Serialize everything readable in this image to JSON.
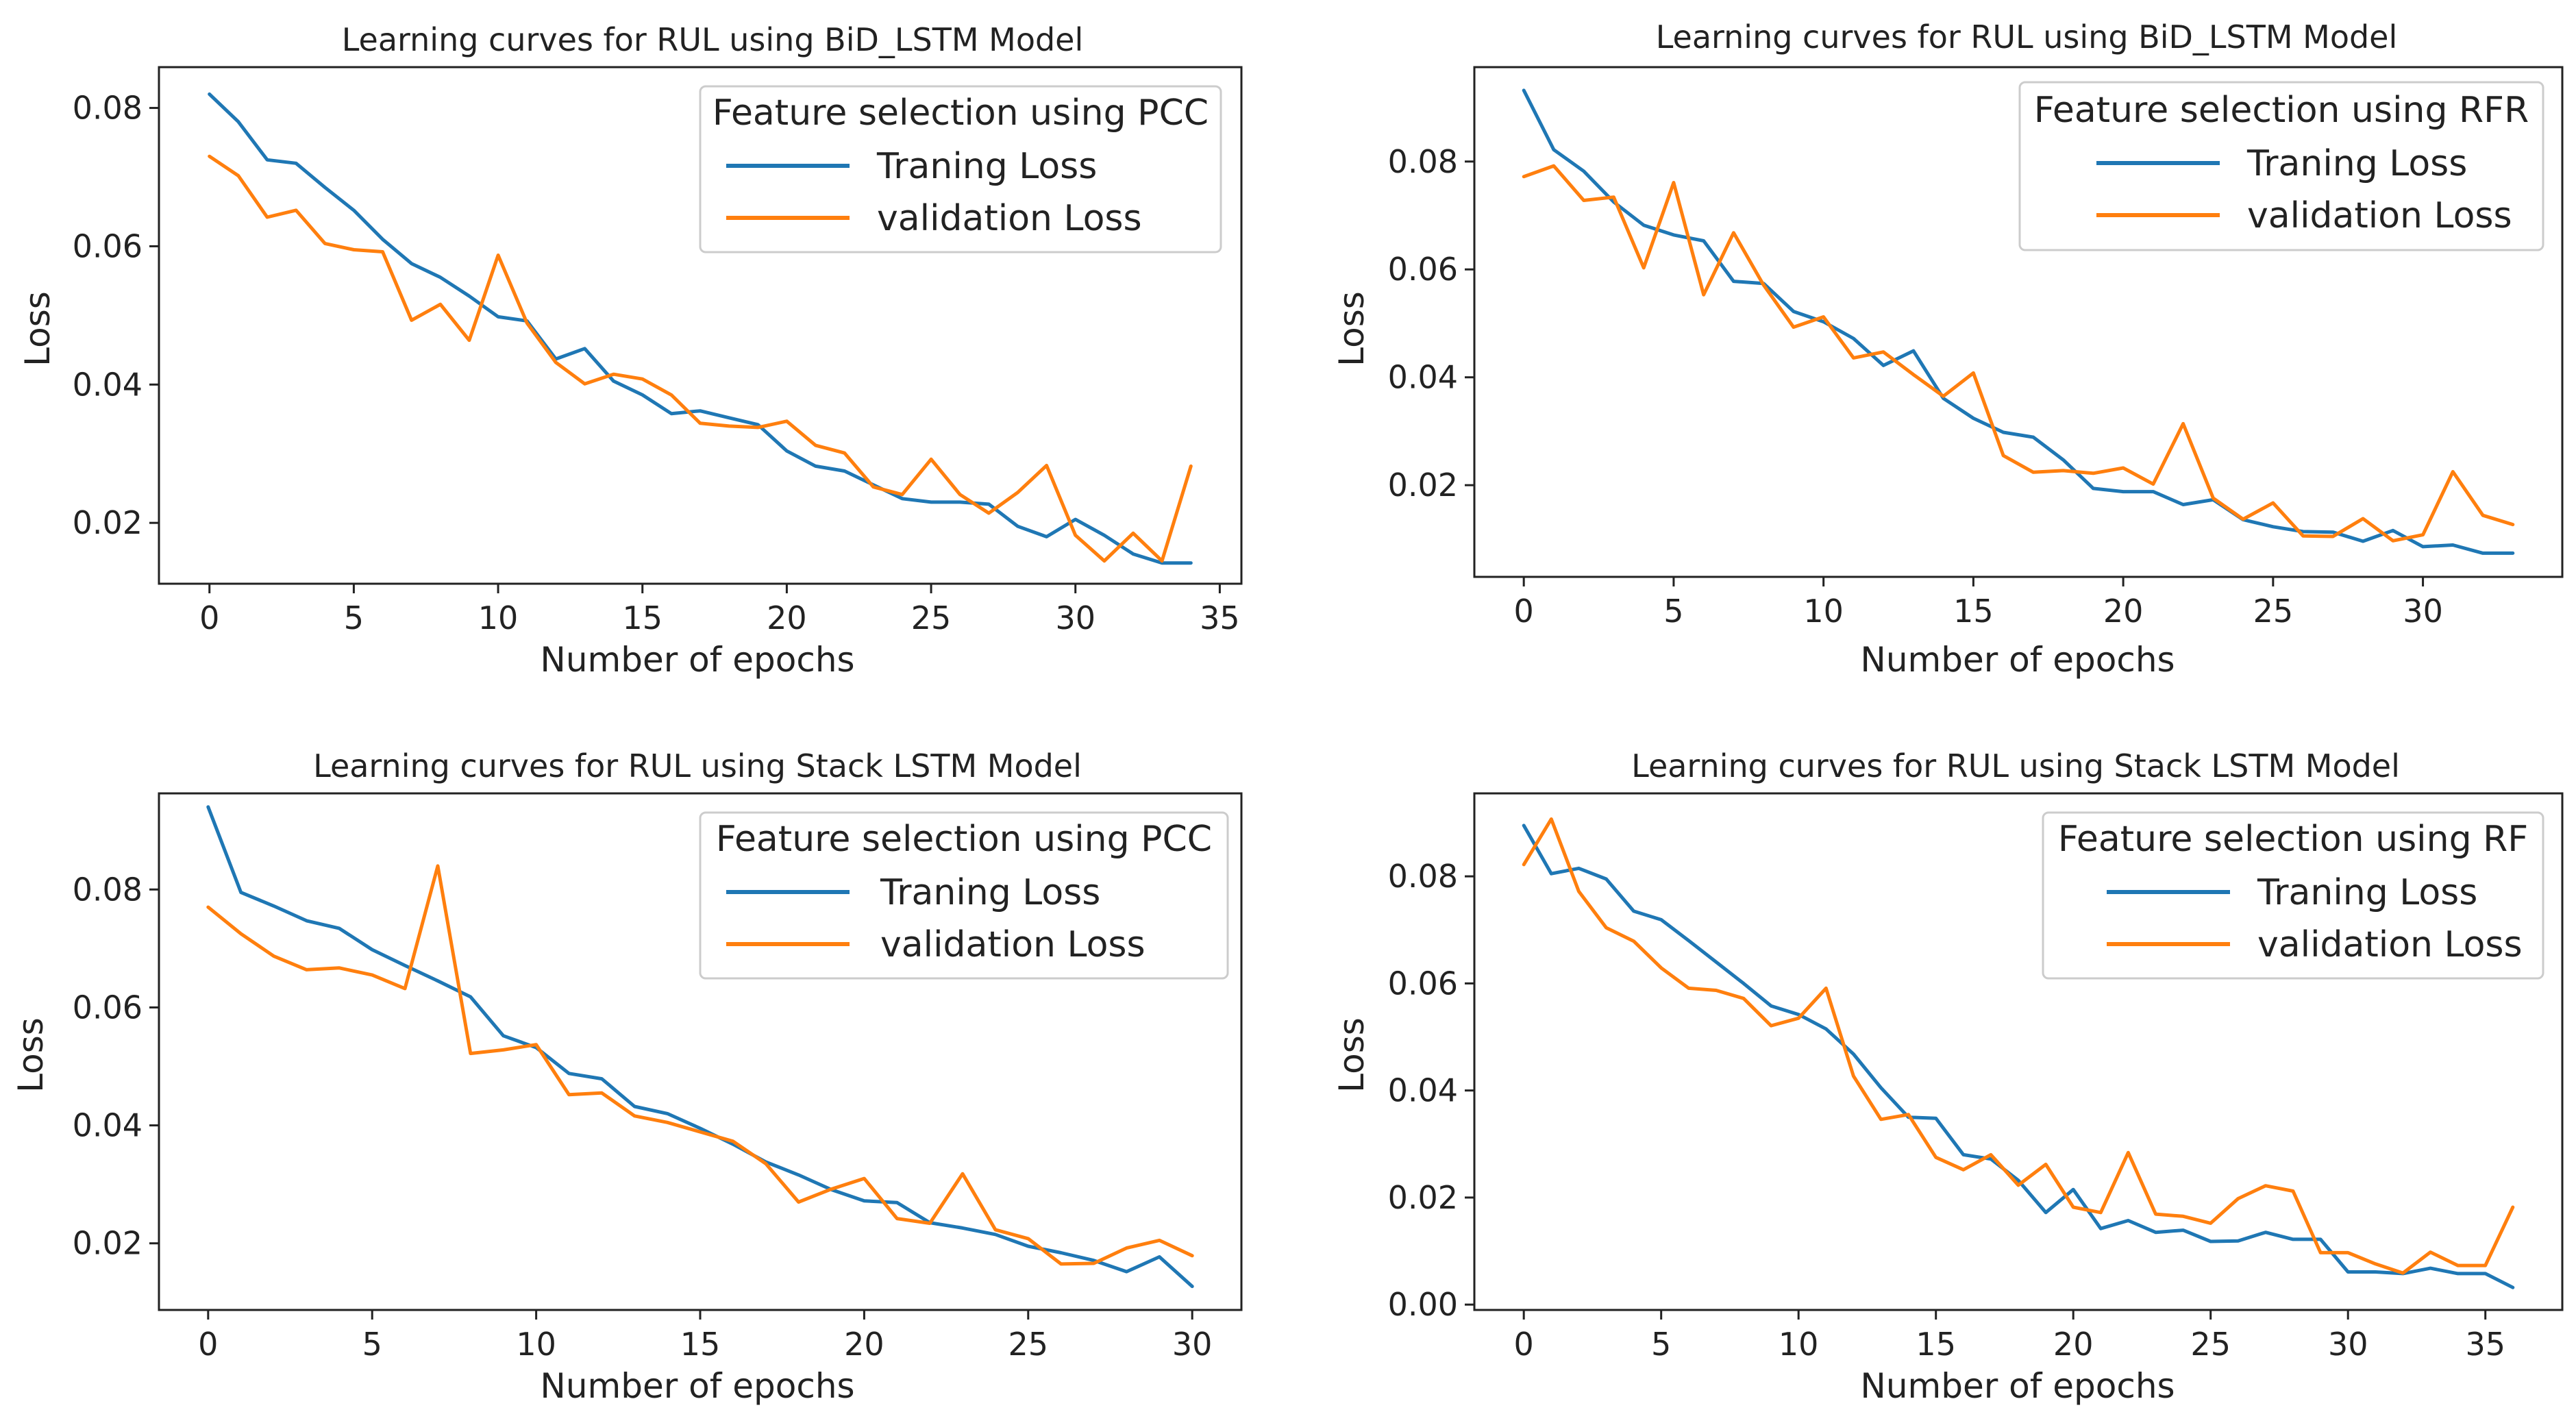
{
  "colors": {
    "train": "#1f77b4",
    "val": "#ff7f0e",
    "axis": "#222222",
    "legend_border": "#cccccc"
  },
  "chart_data": [
    {
      "type": "line",
      "title": "Learning curves for RUL using BiD_LSTM Model",
      "legend_title": "Feature selection using PCC",
      "xlabel": "Number of epochs",
      "ylabel": "Loss",
      "xlim": [
        -1.75,
        35.75
      ],
      "ylim": [
        0.0112,
        0.0859
      ],
      "xticks": [
        0,
        5,
        10,
        15,
        20,
        25,
        30,
        35
      ],
      "yticks": [
        0.02,
        0.04,
        0.06,
        0.08
      ],
      "ytick_labels": [
        "0.02",
        "0.04",
        "0.06",
        "0.08"
      ],
      "series": [
        {
          "name": "Traning Loss",
          "color": "#1f77b4",
          "x": [
            0,
            1,
            2,
            3,
            4,
            5,
            6,
            7,
            8,
            9,
            10,
            11,
            12,
            13,
            14,
            15,
            16,
            17,
            18,
            19,
            20,
            21,
            22,
            23,
            24,
            25,
            26,
            27,
            28,
            29,
            30,
            31,
            32,
            33,
            34
          ],
          "values": [
            0.082,
            0.078,
            0.0725,
            0.072,
            0.0685,
            0.0652,
            0.061,
            0.0575,
            0.0555,
            0.0528,
            0.0498,
            0.0492,
            0.0437,
            0.0452,
            0.0405,
            0.0385,
            0.0358,
            0.0362,
            0.0352,
            0.0342,
            0.0304,
            0.0282,
            0.0275,
            0.0255,
            0.0235,
            0.023,
            0.023,
            0.0227,
            0.0195,
            0.018,
            0.0205,
            0.0182,
            0.0155,
            0.0142,
            0.0142
          ]
        },
        {
          "name": "validation Loss",
          "color": "#ff7f0e",
          "x": [
            0,
            1,
            2,
            3,
            4,
            5,
            6,
            7,
            8,
            9,
            10,
            11,
            12,
            13,
            14,
            15,
            16,
            17,
            18,
            19,
            20,
            21,
            22,
            23,
            24,
            25,
            26,
            27,
            28,
            29,
            30,
            31,
            32,
            33,
            34
          ],
          "values": [
            0.073,
            0.0702,
            0.0642,
            0.0652,
            0.0604,
            0.0595,
            0.0592,
            0.0493,
            0.0516,
            0.0464,
            0.0587,
            0.0489,
            0.0432,
            0.0401,
            0.0415,
            0.0408,
            0.0385,
            0.0344,
            0.034,
            0.0338,
            0.0347,
            0.0312,
            0.0301,
            0.0252,
            0.0241,
            0.0292,
            0.0241,
            0.0214,
            0.0244,
            0.0283,
            0.0182,
            0.0145,
            0.0185,
            0.0145,
            0.0282
          ]
        }
      ]
    },
    {
      "type": "line",
      "title": "Learning curves for RUL using BiD_LSTM Model",
      "legend_title": "Feature selection using RFR",
      "xlabel": "Number of epochs",
      "ylabel": "Loss",
      "xlim": [
        -1.65,
        34.65
      ],
      "ylim": [
        0.003,
        0.0975
      ],
      "xticks": [
        0,
        5,
        10,
        15,
        20,
        25,
        30
      ],
      "yticks": [
        0.02,
        0.04,
        0.06,
        0.08
      ],
      "ytick_labels": [
        "0.02",
        "0.04",
        "0.06",
        "0.08"
      ],
      "series": [
        {
          "name": "Traning Loss",
          "color": "#1f77b4",
          "x": [
            0,
            1,
            2,
            3,
            4,
            5,
            6,
            7,
            8,
            9,
            10,
            11,
            12,
            13,
            14,
            15,
            16,
            17,
            18,
            19,
            20,
            21,
            22,
            23,
            24,
            25,
            26,
            27,
            28,
            29,
            30,
            31,
            32,
            33
          ],
          "values": [
            0.0932,
            0.0822,
            0.0782,
            0.0725,
            0.0682,
            0.0664,
            0.0653,
            0.0578,
            0.0574,
            0.0522,
            0.0503,
            0.0472,
            0.0422,
            0.0449,
            0.0361,
            0.0324,
            0.0298,
            0.0289,
            0.0247,
            0.0194,
            0.0188,
            0.0188,
            0.0164,
            0.0173,
            0.0136,
            0.0123,
            0.0114,
            0.0113,
            0.0096,
            0.0116,
            0.0086,
            0.0089,
            0.0074,
            0.0074
          ]
        },
        {
          "name": "validation Loss",
          "color": "#ff7f0e",
          "x": [
            0,
            1,
            2,
            3,
            4,
            5,
            6,
            7,
            8,
            9,
            10,
            11,
            12,
            13,
            14,
            15,
            16,
            17,
            18,
            19,
            20,
            21,
            22,
            23,
            24,
            25,
            26,
            27,
            28,
            29,
            30,
            31,
            32,
            33
          ],
          "values": [
            0.0772,
            0.0792,
            0.0728,
            0.0734,
            0.0603,
            0.0761,
            0.0553,
            0.0668,
            0.0571,
            0.0493,
            0.0512,
            0.0436,
            0.0447,
            0.0405,
            0.0365,
            0.0408,
            0.0255,
            0.0224,
            0.0227,
            0.0222,
            0.0232,
            0.0202,
            0.0314,
            0.0176,
            0.0137,
            0.0167,
            0.0106,
            0.0105,
            0.0138,
            0.0097,
            0.0108,
            0.0225,
            0.0144,
            0.0127
          ]
        }
      ]
    },
    {
      "type": "line",
      "title": "Learning curves for RUL using Stack LSTM Model",
      "legend_title": "Feature selection using PCC",
      "xlabel": "Number of epochs",
      "ylabel": "Loss",
      "xlim": [
        -1.5,
        31.5
      ],
      "ylim": [
        0.0087,
        0.0963
      ],
      "xticks": [
        0,
        5,
        10,
        15,
        20,
        25,
        30
      ],
      "yticks": [
        0.02,
        0.04,
        0.06,
        0.08
      ],
      "ytick_labels": [
        "0.02",
        "0.04",
        "0.06",
        "0.08"
      ],
      "series": [
        {
          "name": "Traning Loss",
          "color": "#1f77b4",
          "x": [
            0,
            1,
            2,
            3,
            4,
            5,
            6,
            7,
            8,
            9,
            10,
            11,
            12,
            13,
            14,
            15,
            16,
            17,
            18,
            19,
            20,
            21,
            22,
            23,
            24,
            25,
            26,
            27,
            28,
            29,
            30
          ],
          "values": [
            0.094,
            0.0795,
            0.0772,
            0.0747,
            0.0734,
            0.0698,
            0.0671,
            0.0645,
            0.0618,
            0.0552,
            0.0532,
            0.0488,
            0.0479,
            0.0432,
            0.042,
            0.0395,
            0.0368,
            0.0338,
            0.0316,
            0.0291,
            0.0272,
            0.0269,
            0.0235,
            0.0226,
            0.0215,
            0.0195,
            0.0184,
            0.0171,
            0.0152,
            0.0177,
            0.0127
          ]
        },
        {
          "name": "validation Loss",
          "color": "#ff7f0e",
          "x": [
            0,
            1,
            2,
            3,
            4,
            5,
            6,
            7,
            8,
            9,
            10,
            11,
            12,
            13,
            14,
            15,
            16,
            17,
            18,
            19,
            20,
            21,
            22,
            23,
            24,
            25,
            26,
            27,
            28,
            29,
            30
          ],
          "values": [
            0.077,
            0.0725,
            0.0687,
            0.0664,
            0.0667,
            0.0655,
            0.0632,
            0.084,
            0.0522,
            0.0528,
            0.0537,
            0.0452,
            0.0455,
            0.0416,
            0.0405,
            0.0389,
            0.0373,
            0.0335,
            0.027,
            0.0292,
            0.031,
            0.0242,
            0.0234,
            0.0318,
            0.0223,
            0.0208,
            0.0165,
            0.0166,
            0.0192,
            0.0205,
            0.0179
          ]
        }
      ]
    },
    {
      "type": "line",
      "title": "Learning curves for RUL using Stack LSTM Model",
      "legend_title": "Feature selection using RF",
      "xlabel": "Number of epochs",
      "ylabel": "Loss",
      "xlim": [
        -1.8,
        37.8
      ],
      "ylim": [
        -0.001,
        0.0955
      ],
      "xticks": [
        0,
        5,
        10,
        15,
        20,
        25,
        30,
        35
      ],
      "yticks": [
        0.0,
        0.02,
        0.04,
        0.06,
        0.08
      ],
      "ytick_labels": [
        "0.00",
        "0.02",
        "0.04",
        "0.06",
        "0.08"
      ],
      "series": [
        {
          "name": "Traning Loss",
          "color": "#1f77b4",
          "x": [
            0,
            1,
            2,
            3,
            4,
            5,
            6,
            7,
            8,
            9,
            10,
            11,
            12,
            13,
            14,
            15,
            16,
            17,
            18,
            19,
            20,
            21,
            22,
            23,
            24,
            25,
            26,
            27,
            28,
            29,
            30,
            31,
            32,
            33,
            34,
            35,
            36
          ],
          "values": [
            0.0895,
            0.0805,
            0.0815,
            0.0795,
            0.0735,
            0.0719,
            0.068,
            0.064,
            0.06,
            0.0558,
            0.0542,
            0.0515,
            0.0468,
            0.0405,
            0.035,
            0.0348,
            0.028,
            0.0272,
            0.0232,
            0.0172,
            0.0215,
            0.0142,
            0.0157,
            0.0135,
            0.0139,
            0.0118,
            0.0119,
            0.0135,
            0.0122,
            0.0122,
            0.0061,
            0.0061,
            0.0058,
            0.0068,
            0.0058,
            0.0058,
            0.0032
          ]
        },
        {
          "name": "validation Loss",
          "color": "#ff7f0e",
          "x": [
            0,
            1,
            2,
            3,
            4,
            5,
            6,
            7,
            8,
            9,
            10,
            11,
            12,
            13,
            14,
            15,
            16,
            17,
            18,
            19,
            20,
            21,
            22,
            23,
            24,
            25,
            26,
            27,
            28,
            29,
            30,
            31,
            32,
            33,
            34,
            35,
            36
          ],
          "values": [
            0.0822,
            0.0907,
            0.0772,
            0.0704,
            0.0679,
            0.0629,
            0.0591,
            0.0587,
            0.0572,
            0.0521,
            0.0535,
            0.0591,
            0.0427,
            0.0346,
            0.0355,
            0.0275,
            0.0252,
            0.028,
            0.0223,
            0.0262,
            0.0182,
            0.0172,
            0.0284,
            0.0169,
            0.0165,
            0.0152,
            0.0198,
            0.0222,
            0.0212,
            0.0097,
            0.0097,
            0.0076,
            0.0059,
            0.0098,
            0.0073,
            0.0073,
            0.0182
          ]
        }
      ]
    }
  ]
}
